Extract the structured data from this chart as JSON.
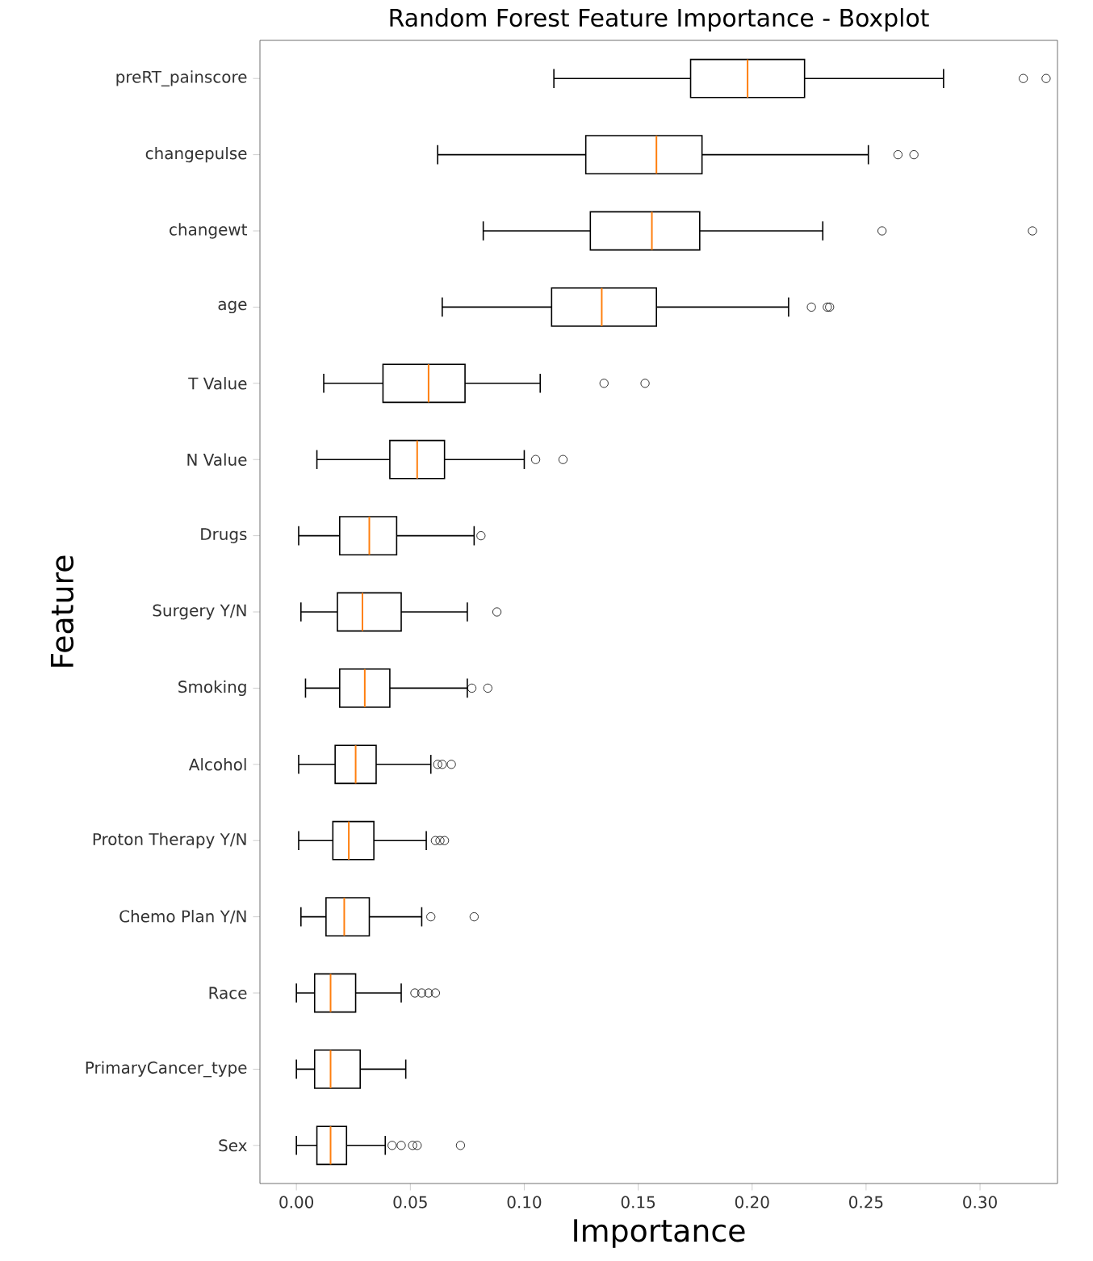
{
  "chart_data": {
    "type": "box",
    "title": "Random Forest Feature Importance - Boxplot",
    "xlabel": "Importance",
    "ylabel": "Feature",
    "orientation": "horizontal",
    "marker": "circle",
    "categories": [
      "preRT_painscore",
      "changepulse",
      "changewt",
      "age",
      "T Value",
      "N Value",
      "Drugs",
      "Surgery Y/N",
      "Smoking",
      "Alcohol",
      "Proton Therapy Y/N",
      "Chemo Plan Y/N",
      "Race",
      "PrimaryCancer_type",
      "Sex"
    ],
    "boxes": [
      {
        "low": 0.113,
        "q1": 0.173,
        "median": 0.198,
        "q3": 0.223,
        "high": 0.284,
        "outliers": [
          0.319,
          0.329
        ]
      },
      {
        "low": 0.062,
        "q1": 0.127,
        "median": 0.158,
        "q3": 0.178,
        "high": 0.251,
        "outliers": [
          0.264,
          0.271
        ]
      },
      {
        "low": 0.082,
        "q1": 0.129,
        "median": 0.156,
        "q3": 0.177,
        "high": 0.231,
        "outliers": [
          0.257,
          0.323
        ]
      },
      {
        "low": 0.064,
        "q1": 0.112,
        "median": 0.134,
        "q3": 0.158,
        "high": 0.216,
        "outliers": [
          0.226,
          0.233,
          0.234
        ]
      },
      {
        "low": 0.012,
        "q1": 0.038,
        "median": 0.058,
        "q3": 0.074,
        "high": 0.107,
        "outliers": [
          0.135,
          0.153
        ]
      },
      {
        "low": 0.009,
        "q1": 0.041,
        "median": 0.053,
        "q3": 0.065,
        "high": 0.1,
        "outliers": [
          0.105,
          0.117
        ]
      },
      {
        "low": 0.001,
        "q1": 0.019,
        "median": 0.032,
        "q3": 0.044,
        "high": 0.078,
        "outliers": [
          0.081
        ]
      },
      {
        "low": 0.002,
        "q1": 0.018,
        "median": 0.029,
        "q3": 0.046,
        "high": 0.075,
        "outliers": [
          0.088
        ]
      },
      {
        "low": 0.004,
        "q1": 0.019,
        "median": 0.03,
        "q3": 0.041,
        "high": 0.075,
        "outliers": [
          0.077,
          0.084
        ]
      },
      {
        "low": 0.001,
        "q1": 0.017,
        "median": 0.026,
        "q3": 0.035,
        "high": 0.059,
        "outliers": [
          0.062,
          0.064,
          0.068
        ]
      },
      {
        "low": 0.001,
        "q1": 0.016,
        "median": 0.023,
        "q3": 0.034,
        "high": 0.057,
        "outliers": [
          0.061,
          0.063,
          0.065
        ]
      },
      {
        "low": 0.002,
        "q1": 0.013,
        "median": 0.021,
        "q3": 0.032,
        "high": 0.055,
        "outliers": [
          0.059,
          0.078
        ]
      },
      {
        "low": 0.0,
        "q1": 0.008,
        "median": 0.015,
        "q3": 0.026,
        "high": 0.046,
        "outliers": [
          0.052,
          0.055,
          0.058,
          0.061
        ]
      },
      {
        "low": 0.0,
        "q1": 0.008,
        "median": 0.015,
        "q3": 0.028,
        "high": 0.048
      },
      {
        "low": 0.0,
        "q1": 0.009,
        "median": 0.015,
        "q3": 0.022,
        "high": 0.039,
        "outliers": [
          0.042,
          0.046,
          0.051,
          0.053,
          0.072
        ]
      }
    ],
    "xlim": [
      -0.016,
      0.334
    ],
    "xticks": [
      {
        "value": 0,
        "label": "0.00"
      },
      {
        "value": 0.05,
        "label": "0.05"
      },
      {
        "value": 0.1,
        "label": "0.10"
      },
      {
        "value": 0.15,
        "label": "0.15"
      },
      {
        "value": 0.2,
        "label": "0.20"
      },
      {
        "value": 0.25,
        "label": "0.25"
      },
      {
        "value": 0.3,
        "label": "0.30"
      }
    ]
  }
}
